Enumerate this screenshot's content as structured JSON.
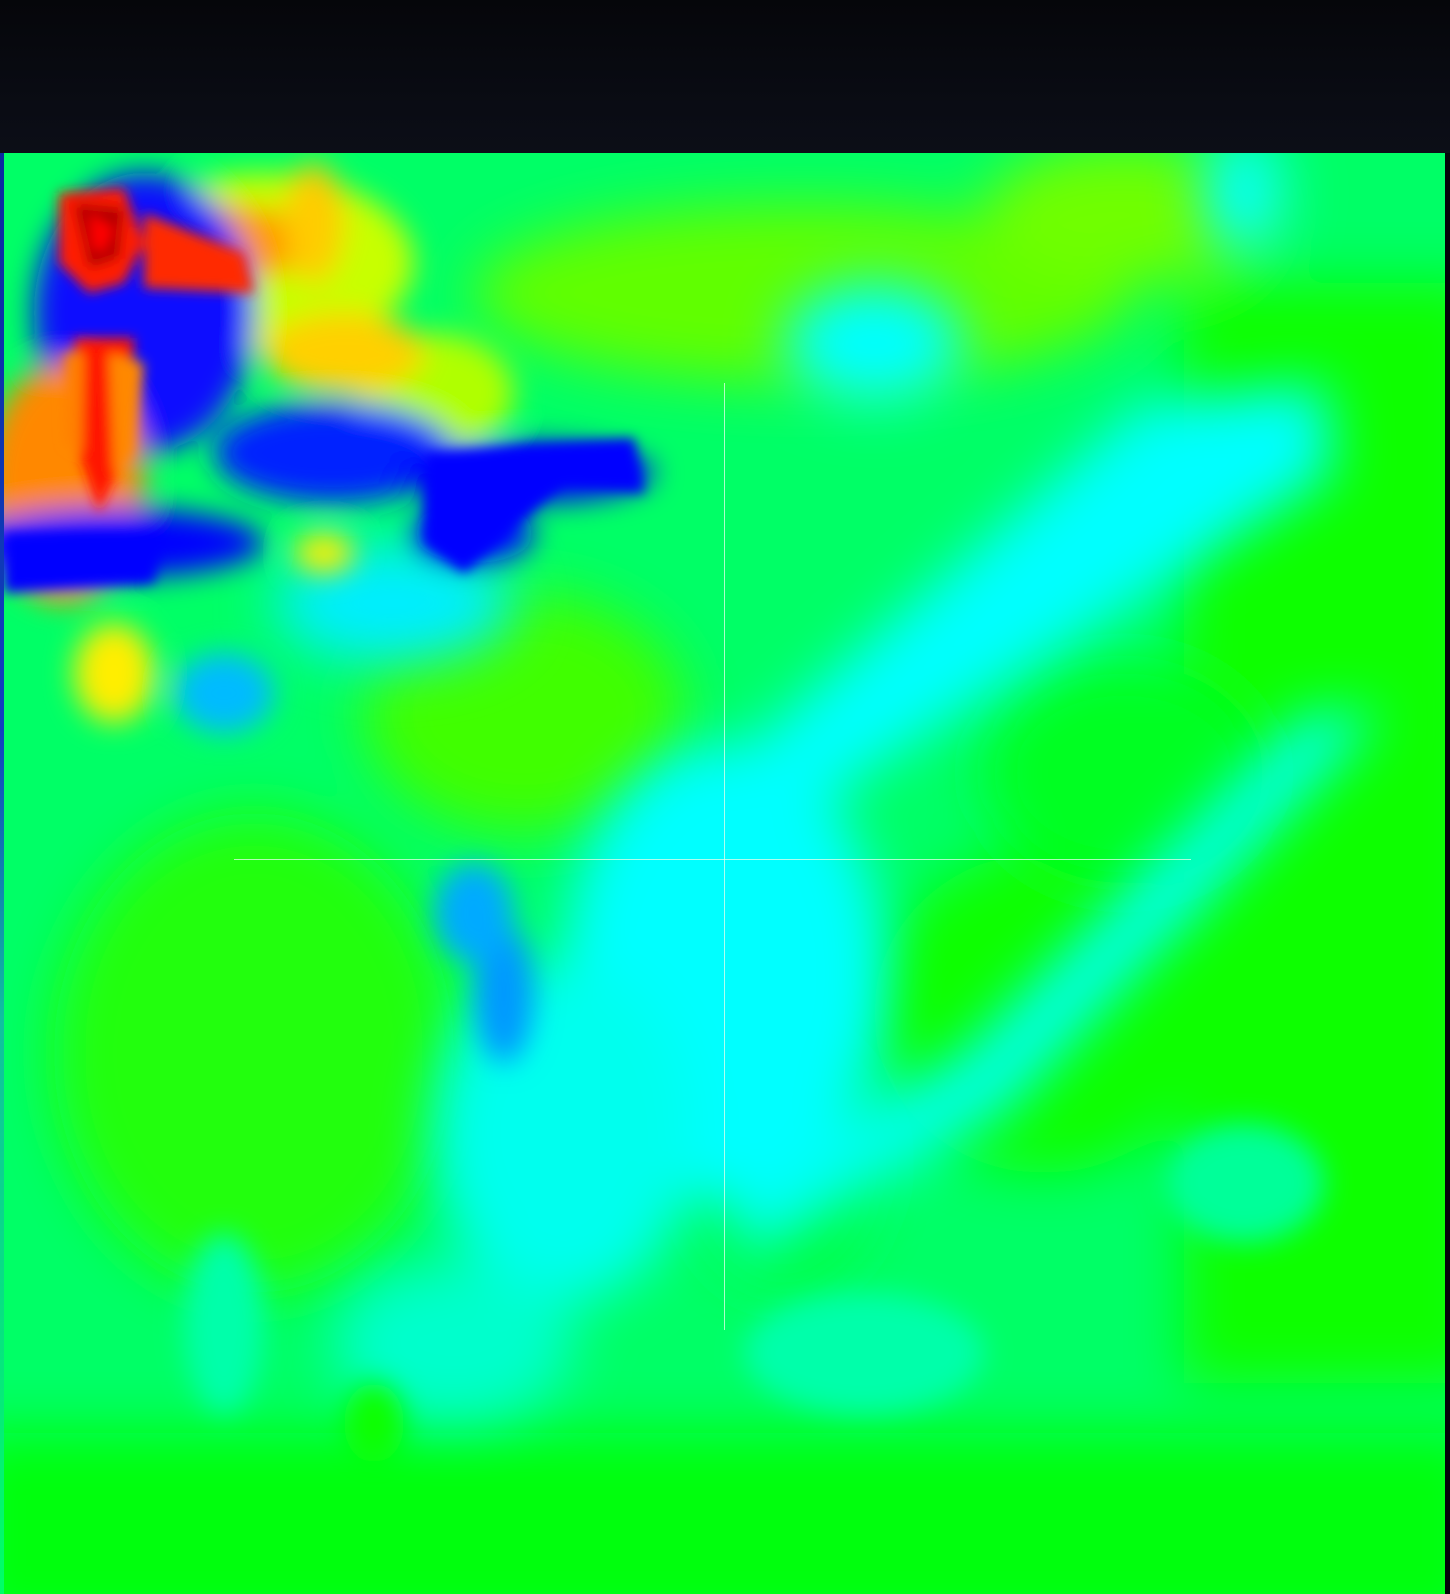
{
  "viewer": {
    "colors": {
      "background": "#05060a",
      "toolbar": "#0b0d16",
      "red": "#ff1a00",
      "dark_red": "#b00000",
      "orange": "#ff8800",
      "yellow": "#eaff00",
      "green": "#00ff00",
      "spring_green": "#00ff88",
      "cyan": "#00ffff",
      "azure": "#0099ff",
      "blue": "#0000ff",
      "crosshair": "#e6ffeb"
    },
    "icons": {
      "crosshair": "crosshair-icon"
    }
  }
}
